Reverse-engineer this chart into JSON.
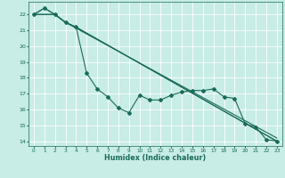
{
  "title": "",
  "xlabel": "Humidex (Indice chaleur)",
  "bg_color": "#c8ece6",
  "grid_color": "#ffffff",
  "line_color": "#1a6b5a",
  "xlim": [
    -0.5,
    23.5
  ],
  "ylim": [
    13.7,
    22.8
  ],
  "yticks": [
    14,
    15,
    16,
    17,
    18,
    19,
    20,
    21,
    22
  ],
  "xticks": [
    0,
    1,
    2,
    3,
    4,
    5,
    6,
    7,
    8,
    9,
    10,
    11,
    12,
    13,
    14,
    15,
    16,
    17,
    18,
    19,
    20,
    21,
    22,
    23
  ],
  "series": [
    {
      "x": [
        0,
        1,
        2,
        3,
        4,
        5,
        6,
        7,
        8,
        9,
        10,
        11,
        12,
        13,
        14,
        15,
        16,
        17,
        18,
        19,
        20,
        21,
        22,
        23
      ],
      "y": [
        22.0,
        22.4,
        22.0,
        21.5,
        21.2,
        18.3,
        17.3,
        16.8,
        16.1,
        15.8,
        16.9,
        16.6,
        16.6,
        16.9,
        17.1,
        17.2,
        17.2,
        17.3,
        16.8,
        16.7,
        15.1,
        14.9,
        14.1,
        14.0
      ],
      "has_markers": true
    },
    {
      "x": [
        0,
        1,
        2,
        3,
        4,
        23
      ],
      "y": [
        22.0,
        22.4,
        22.0,
        21.5,
        21.2,
        14.0
      ],
      "has_markers": false
    },
    {
      "x": [
        0,
        2,
        3,
        4,
        23
      ],
      "y": [
        22.0,
        22.0,
        21.5,
        21.2,
        14.0
      ],
      "has_markers": false
    },
    {
      "x": [
        0,
        2,
        3,
        23
      ],
      "y": [
        22.0,
        22.0,
        21.5,
        14.2
      ],
      "has_markers": false
    }
  ]
}
